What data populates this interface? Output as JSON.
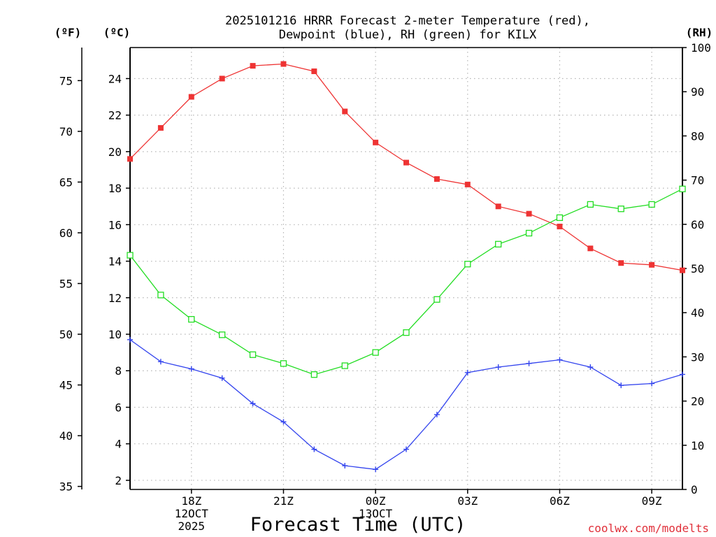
{
  "chart_data": {
    "type": "line",
    "title_lines": [
      "2025101216 HRRR Forecast 2-meter Temperature (red),",
      "Dewpoint (blue), RH (green) for KILX"
    ],
    "xlabel": "Forecast Time (UTC)",
    "credit": "coolwx.com/modelts",
    "unit_labels": {
      "fahrenheit": "(ºF)",
      "celsius": "(ºC)",
      "rh": "(RH)"
    },
    "x_hours": [
      16,
      17,
      18,
      19,
      20,
      21,
      22,
      23,
      24,
      25,
      26,
      27,
      28,
      29,
      30,
      31,
      32,
      33,
      34
    ],
    "xlim": [
      16,
      34
    ],
    "x_ticks": [
      {
        "x": 18,
        "lines": [
          "18Z",
          "12OCT",
          "2025"
        ]
      },
      {
        "x": 21,
        "lines": [
          "21Z"
        ]
      },
      {
        "x": 24,
        "lines": [
          "00Z",
          "13OCT"
        ]
      },
      {
        "x": 27,
        "lines": [
          "03Z"
        ]
      },
      {
        "x": 30,
        "lines": [
          "06Z"
        ]
      },
      {
        "x": 33,
        "lines": [
          "09Z"
        ]
      }
    ],
    "celsius_axis": {
      "range": [
        1.5,
        25.7
      ],
      "ticks": [
        "2",
        "4",
        "6",
        "8",
        "10",
        "12",
        "14",
        "16",
        "18",
        "20",
        "22",
        "24"
      ]
    },
    "fahrenheit_axis": {
      "range": [
        34.7,
        78.26
      ],
      "ticks": [
        "35",
        "40",
        "45",
        "50",
        "55",
        "60",
        "65",
        "70",
        "75"
      ]
    },
    "rh_axis": {
      "range": [
        0,
        100
      ],
      "ticks": [
        "0",
        "10",
        "20",
        "30",
        "40",
        "50",
        "60",
        "70",
        "80",
        "90",
        "100"
      ]
    },
    "series": [
      {
        "name": "Temperature",
        "units": "C",
        "axis": "celsius",
        "color": "#ee3333",
        "marker": "filled-square",
        "values": [
          19.6,
          21.3,
          23.0,
          24.0,
          24.7,
          24.8,
          24.4,
          22.2,
          20.5,
          19.4,
          18.5,
          18.2,
          17.0,
          16.6,
          15.9,
          14.7,
          13.9,
          13.8,
          13.5
        ]
      },
      {
        "name": "Dewpoint",
        "units": "C",
        "axis": "celsius",
        "color": "#3344ee",
        "marker": "plus",
        "values": [
          9.7,
          8.5,
          8.1,
          7.6,
          6.2,
          5.2,
          3.7,
          2.8,
          2.6,
          3.7,
          5.6,
          7.9,
          8.2,
          8.4,
          8.6,
          8.2,
          7.2,
          7.3,
          7.8
        ]
      },
      {
        "name": "RH",
        "units": "%",
        "axis": "rh",
        "color": "#22dd22",
        "marker": "open-square",
        "values": [
          53,
          44,
          38.5,
          35,
          30.5,
          28.5,
          26,
          28,
          31,
          35.5,
          43,
          51,
          55.5,
          58,
          61.5,
          64.5,
          63.5,
          64.5,
          68
        ]
      }
    ],
    "grid": true
  }
}
